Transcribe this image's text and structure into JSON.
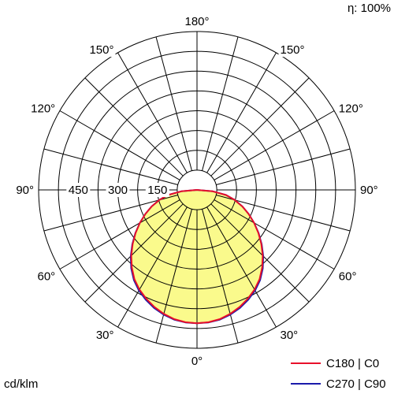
{
  "chart_data": {
    "type": "polar",
    "efficiency_label": "η: 100%",
    "unit_label": "cd/klm",
    "angle_labels": [
      {
        "text": "0°",
        "angle": 0,
        "side": "bottom"
      },
      {
        "text": "30°",
        "angle": 30,
        "side": "left"
      },
      {
        "text": "30°",
        "angle": 30,
        "side": "right"
      },
      {
        "text": "60°",
        "angle": 60,
        "side": "left"
      },
      {
        "text": "60°",
        "angle": 60,
        "side": "right"
      },
      {
        "text": "90°",
        "angle": 90,
        "side": "left"
      },
      {
        "text": "90°",
        "angle": 90,
        "side": "right"
      },
      {
        "text": "120°",
        "angle": 120,
        "side": "left"
      },
      {
        "text": "120°",
        "angle": 120,
        "side": "right"
      },
      {
        "text": "150°",
        "angle": 150,
        "side": "left"
      },
      {
        "text": "150°",
        "angle": 150,
        "side": "right"
      },
      {
        "text": "180°",
        "angle": 180,
        "side": "top"
      }
    ],
    "radial_ticks": [
      {
        "value": 150,
        "label": "150"
      },
      {
        "value": 300,
        "label": "300"
      },
      {
        "value": 450,
        "label": "450"
      }
    ],
    "radial_grid_values": [
      75,
      150,
      225,
      300,
      375,
      450,
      525,
      600
    ],
    "angle_grid_step_deg": 15,
    "r_max": 600,
    "series": [
      {
        "name": "C180 | C0",
        "color": "#e8102a",
        "angles_deg": [
          0,
          5,
          10,
          15,
          20,
          25,
          30,
          35,
          40,
          45,
          50,
          55,
          60,
          65,
          70,
          75,
          80,
          85,
          90
        ],
        "values": [
          505,
          503,
          497,
          486,
          472,
          455,
          436,
          413,
          384,
          352,
          318,
          284,
          250,
          216,
          183,
          148,
          112,
          60,
          0
        ]
      },
      {
        "name": "C270 | C90",
        "color": "#1a1aaa",
        "angles_deg": [
          0,
          5,
          10,
          15,
          20,
          25,
          30,
          35,
          40,
          45,
          50,
          55,
          60,
          65,
          70,
          75,
          80,
          85,
          90
        ],
        "values": [
          505,
          504,
          499,
          489,
          476,
          459,
          440,
          417,
          388,
          355,
          320,
          285,
          250,
          216,
          183,
          148,
          112,
          60,
          0
        ]
      }
    ],
    "fill_color": "#fafa8c",
    "grid": true,
    "legend_position": "bottom-right"
  }
}
